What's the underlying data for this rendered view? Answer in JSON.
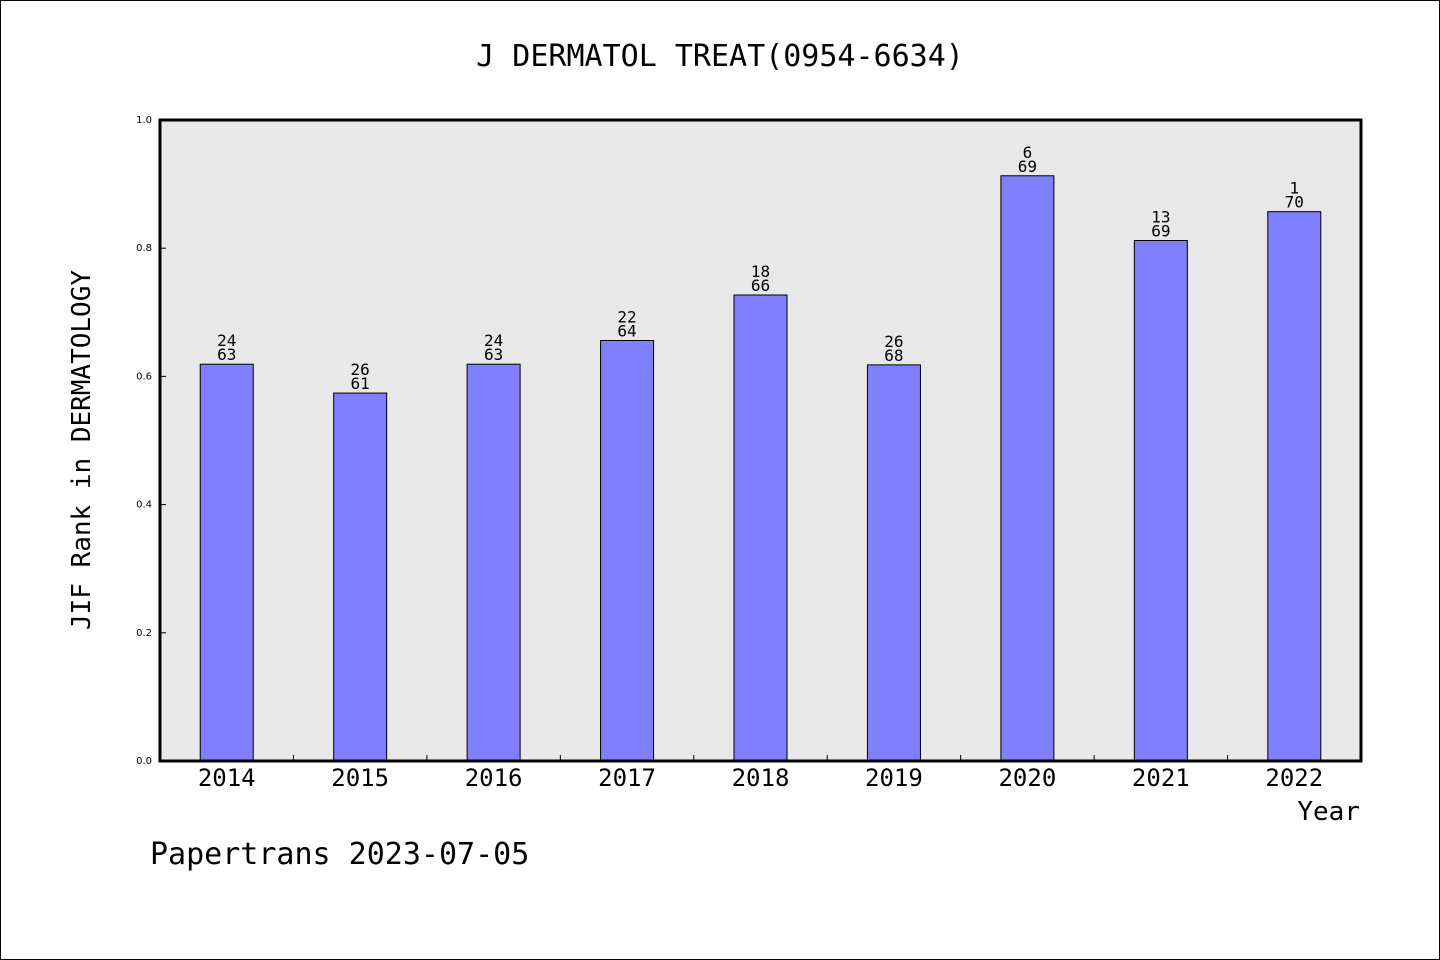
{
  "chart_data": {
    "type": "bar",
    "title": "J DERMATOL TREAT(0954-6634)",
    "xlabel": "Year",
    "ylabel": "JIF Rank in DERMATOLOGY",
    "ylim": [
      0,
      1.0
    ],
    "yticks": [
      "0.0",
      "0.2",
      "0.4",
      "0.6",
      "0.8",
      "1.0"
    ],
    "ytick_values": [
      0,
      0.2,
      0.4,
      0.6,
      0.8,
      1.0
    ],
    "categories": [
      "2014",
      "2015",
      "2016",
      "2017",
      "2018",
      "2019",
      "2020",
      "2021",
      "2022"
    ],
    "values": [
      0.619,
      0.574,
      0.619,
      0.656,
      0.727,
      0.618,
      0.913,
      0.812,
      0.857
    ],
    "rank": [
      "24",
      "26",
      "24",
      "22",
      "18",
      "26",
      "6",
      "13",
      "1"
    ],
    "total": [
      "63",
      "61",
      "63",
      "64",
      "66",
      "68",
      "69",
      "69",
      "70"
    ],
    "grid": false,
    "legend": "none",
    "colors": {
      "bar": "#8080ff",
      "plot_bg": "#e8e8e8"
    }
  },
  "footer": "Papertrans 2023-07-05"
}
